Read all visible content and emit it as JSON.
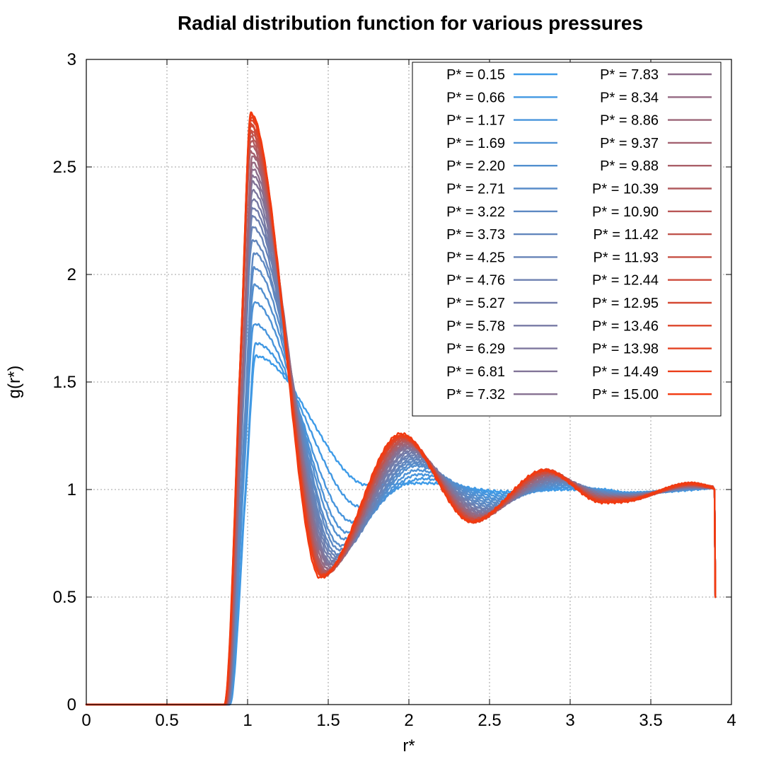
{
  "chart_data": {
    "type": "line",
    "title": "Radial distribution function for various pressures",
    "xlabel": "r*",
    "ylabel": "g(r*)",
    "xlim": [
      0,
      4
    ],
    "ylim": [
      0,
      3
    ],
    "x_ticks": [
      "0",
      "0.5",
      "1",
      "1.5",
      "2",
      "2.5",
      "3",
      "3.5",
      "4"
    ],
    "y_ticks": [
      "0",
      "0.5",
      "1",
      "1.5",
      "2",
      "2.5",
      "3"
    ],
    "grid": true,
    "legend_position": "top-right",
    "legend_columns": 2,
    "color_start": "#3d9be8",
    "color_mid": "#8a6f8f",
    "color_end": "#f23a10",
    "x_end": 3.9,
    "series": [
      {
        "name": "P* = 0.15",
        "peak1": [
          1.05,
          1.62
        ],
        "min1": [
          1.75,
          1.02
        ],
        "peak2": [
          2.1,
          1.03
        ],
        "min2": [
          2.6,
          0.99
        ],
        "peak3": [
          3.0,
          1.0
        ]
      },
      {
        "name": "P* = 0.66",
        "peak1": [
          1.05,
          1.68
        ],
        "min1": [
          1.7,
          0.92
        ],
        "peak2": [
          2.08,
          1.05
        ],
        "min2": [
          2.58,
          0.98
        ],
        "peak3": [
          3.0,
          1.01
        ]
      },
      {
        "name": "P* = 1.17",
        "peak1": [
          1.04,
          1.77
        ],
        "min1": [
          1.65,
          0.85
        ],
        "peak2": [
          2.06,
          1.07
        ],
        "min2": [
          2.56,
          0.97
        ],
        "peak3": [
          2.98,
          1.01
        ]
      },
      {
        "name": "P* = 1.69",
        "peak1": [
          1.04,
          1.87
        ],
        "min1": [
          1.62,
          0.8
        ],
        "peak2": [
          2.05,
          1.09
        ],
        "min2": [
          2.54,
          0.96
        ],
        "peak3": [
          2.97,
          1.02
        ]
      },
      {
        "name": "P* = 2.20",
        "peak1": [
          1.04,
          1.95
        ],
        "min1": [
          1.6,
          0.77
        ],
        "peak2": [
          2.04,
          1.11
        ],
        "min2": [
          2.52,
          0.95
        ],
        "peak3": [
          2.96,
          1.02
        ]
      },
      {
        "name": "P* = 2.71",
        "peak1": [
          1.04,
          2.03
        ],
        "min1": [
          1.58,
          0.74
        ],
        "peak2": [
          2.03,
          1.12
        ],
        "min2": [
          2.51,
          0.94
        ],
        "peak3": [
          2.95,
          1.03
        ]
      },
      {
        "name": "P* = 3.22",
        "peak1": [
          1.04,
          2.1
        ],
        "min1": [
          1.57,
          0.72
        ],
        "peak2": [
          2.02,
          1.13
        ],
        "min2": [
          2.5,
          0.93
        ],
        "peak3": [
          2.94,
          1.03
        ]
      },
      {
        "name": "P* = 3.73",
        "peak1": [
          1.03,
          2.16
        ],
        "min1": [
          1.56,
          0.7
        ],
        "peak2": [
          2.02,
          1.14
        ],
        "min2": [
          2.49,
          0.92
        ],
        "peak3": [
          2.93,
          1.04
        ]
      },
      {
        "name": "P* = 4.25",
        "peak1": [
          1.03,
          2.22
        ],
        "min1": [
          1.55,
          0.69
        ],
        "peak2": [
          2.01,
          1.15
        ],
        "min2": [
          2.48,
          0.91
        ],
        "peak3": [
          2.92,
          1.04
        ]
      },
      {
        "name": "P* = 4.76",
        "peak1": [
          1.03,
          2.27
        ],
        "min1": [
          1.54,
          0.68
        ],
        "peak2": [
          2.01,
          1.16
        ],
        "min2": [
          2.47,
          0.91
        ],
        "peak3": [
          2.92,
          1.04
        ]
      },
      {
        "name": "P* = 5.27",
        "peak1": [
          1.03,
          2.31
        ],
        "min1": [
          1.53,
          0.67
        ],
        "peak2": [
          2.0,
          1.17
        ],
        "min2": [
          2.46,
          0.9
        ],
        "peak3": [
          2.91,
          1.05
        ]
      },
      {
        "name": "P* = 5.78",
        "peak1": [
          1.03,
          2.35
        ],
        "min1": [
          1.52,
          0.66
        ],
        "peak2": [
          2.0,
          1.18
        ],
        "min2": [
          2.46,
          0.9
        ],
        "peak3": [
          2.91,
          1.05
        ]
      },
      {
        "name": "P* = 6.29",
        "peak1": [
          1.03,
          2.39
        ],
        "min1": [
          1.52,
          0.65
        ],
        "peak2": [
          1.99,
          1.19
        ],
        "min2": [
          2.45,
          0.89
        ],
        "peak3": [
          2.9,
          1.05
        ]
      },
      {
        "name": "P* = 6.81",
        "peak1": [
          1.03,
          2.43
        ],
        "min1": [
          1.51,
          0.65
        ],
        "peak2": [
          1.99,
          1.19
        ],
        "min2": [
          2.45,
          0.89
        ],
        "peak3": [
          2.9,
          1.06
        ]
      },
      {
        "name": "P* = 7.32",
        "peak1": [
          1.03,
          2.46
        ],
        "min1": [
          1.51,
          0.64
        ],
        "peak2": [
          1.99,
          1.2
        ],
        "min2": [
          2.44,
          0.88
        ],
        "peak3": [
          2.89,
          1.06
        ]
      },
      {
        "name": "P* = 7.83",
        "peak1": [
          1.03,
          2.49
        ],
        "min1": [
          1.5,
          0.63
        ],
        "peak2": [
          1.98,
          1.2
        ],
        "min2": [
          2.44,
          0.88
        ],
        "peak3": [
          2.89,
          1.06
        ]
      },
      {
        "name": "P* = 8.34",
        "peak1": [
          1.03,
          2.52
        ],
        "min1": [
          1.5,
          0.63
        ],
        "peak2": [
          1.98,
          1.21
        ],
        "min2": [
          2.43,
          0.88
        ],
        "peak3": [
          2.88,
          1.07
        ]
      },
      {
        "name": "P* = 8.86",
        "peak1": [
          1.03,
          2.55
        ],
        "min1": [
          1.49,
          0.62
        ],
        "peak2": [
          1.98,
          1.21
        ],
        "min2": [
          2.43,
          0.87
        ],
        "peak3": [
          2.88,
          1.07
        ]
      },
      {
        "name": "P* = 9.37",
        "peak1": [
          1.02,
          2.57
        ],
        "min1": [
          1.49,
          0.62
        ],
        "peak2": [
          1.98,
          1.22
        ],
        "min2": [
          2.42,
          0.87
        ],
        "peak3": [
          2.88,
          1.07
        ]
      },
      {
        "name": "P* = 9.88",
        "peak1": [
          1.02,
          2.6
        ],
        "min1": [
          1.48,
          0.62
        ],
        "peak2": [
          1.97,
          1.22
        ],
        "min2": [
          2.42,
          0.87
        ],
        "peak3": [
          2.87,
          1.07
        ]
      },
      {
        "name": "P* = 10.39",
        "peak1": [
          1.02,
          2.62
        ],
        "min1": [
          1.48,
          0.61
        ],
        "peak2": [
          1.97,
          1.23
        ],
        "min2": [
          2.42,
          0.86
        ],
        "peak3": [
          2.87,
          1.08
        ]
      },
      {
        "name": "P* = 10.90",
        "peak1": [
          1.02,
          2.64
        ],
        "min1": [
          1.48,
          0.61
        ],
        "peak2": [
          1.97,
          1.23
        ],
        "min2": [
          2.41,
          0.86
        ],
        "peak3": [
          2.87,
          1.08
        ]
      },
      {
        "name": "P* = 11.42",
        "peak1": [
          1.02,
          2.66
        ],
        "min1": [
          1.47,
          0.61
        ],
        "peak2": [
          1.97,
          1.23
        ],
        "min2": [
          2.41,
          0.86
        ],
        "peak3": [
          2.86,
          1.08
        ]
      },
      {
        "name": "P* = 11.93",
        "peak1": [
          1.02,
          2.67
        ],
        "min1": [
          1.47,
          0.6
        ],
        "peak2": [
          1.96,
          1.24
        ],
        "min2": [
          2.41,
          0.86
        ],
        "peak3": [
          2.86,
          1.08
        ]
      },
      {
        "name": "P* = 12.44",
        "peak1": [
          1.02,
          2.69
        ],
        "min1": [
          1.47,
          0.6
        ],
        "peak2": [
          1.96,
          1.24
        ],
        "min2": [
          2.4,
          0.86
        ],
        "peak3": [
          2.86,
          1.08
        ]
      },
      {
        "name": "P* = 12.95",
        "peak1": [
          1.02,
          2.7
        ],
        "min1": [
          1.46,
          0.6
        ],
        "peak2": [
          1.96,
          1.24
        ],
        "min2": [
          2.4,
          0.85
        ],
        "peak3": [
          2.85,
          1.09
        ]
      },
      {
        "name": "P* = 13.46",
        "peak1": [
          1.02,
          2.72
        ],
        "min1": [
          1.46,
          0.6
        ],
        "peak2": [
          1.96,
          1.25
        ],
        "min2": [
          2.4,
          0.85
        ],
        "peak3": [
          2.85,
          1.09
        ]
      },
      {
        "name": "P* = 13.98",
        "peak1": [
          1.02,
          2.73
        ],
        "min1": [
          1.46,
          0.6
        ],
        "peak2": [
          1.96,
          1.25
        ],
        "min2": [
          2.4,
          0.85
        ],
        "peak3": [
          2.85,
          1.09
        ]
      },
      {
        "name": "P* = 14.49",
        "peak1": [
          1.02,
          2.74
        ],
        "min1": [
          1.46,
          0.6
        ],
        "peak2": [
          1.95,
          1.25
        ],
        "min2": [
          2.39,
          0.85
        ],
        "peak3": [
          2.85,
          1.09
        ]
      },
      {
        "name": "P* = 15.00",
        "peak1": [
          1.02,
          2.75
        ],
        "min1": [
          1.45,
          0.59
        ],
        "peak2": [
          1.95,
          1.26
        ],
        "min2": [
          2.39,
          0.85
        ],
        "peak3": [
          2.84,
          1.09
        ]
      }
    ]
  }
}
